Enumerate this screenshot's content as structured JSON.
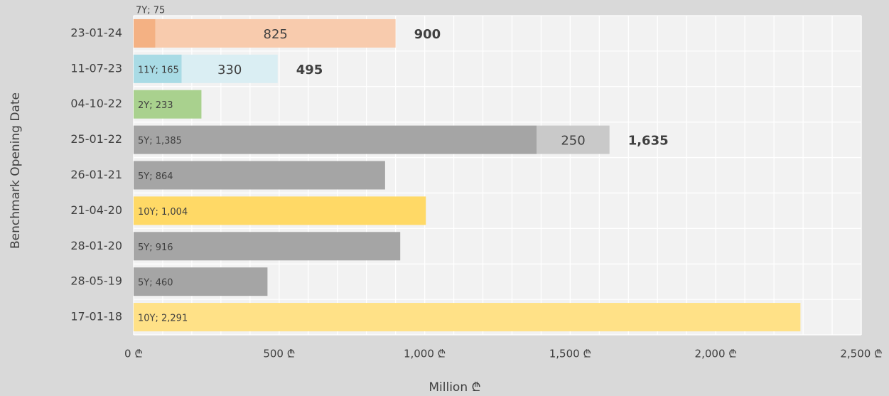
{
  "chart_data": {
    "type": "stacked-barh",
    "y_label": "Benchmark Opening Date",
    "x_label": "Million ₾",
    "categories": [
      "23-01-24",
      "11-07-23",
      "04-10-22",
      "25-01-22",
      "26-01-21",
      "21-04-20",
      "28-01-20",
      "28-05-19",
      "17-01-18"
    ],
    "series": [
      {
        "values": [
          75,
          165,
          233,
          1385,
          864,
          1004,
          916,
          460,
          2291
        ],
        "value_labels": [
          "7Y; 75",
          "11Y; 165",
          "2Y; 233",
          "5Y; 1,385",
          "5Y; 864",
          "10Y; 1,004",
          "5Y; 916",
          "5Y; 460",
          "10Y; 2,291"
        ],
        "colors": [
          "#f4b183",
          "#a9dbe5",
          "#a9d18e",
          "#a5a5a5",
          "#a5a5a5",
          "#ffd966",
          "#a5a5a5",
          "#a5a5a5",
          "#ffe187"
        ]
      },
      {
        "values": [
          825,
          330,
          null,
          250,
          null,
          null,
          null,
          null,
          null
        ],
        "colors": [
          "#f8cbad",
          "#daeef3",
          null,
          "#c9c9c9",
          null,
          null,
          null,
          null,
          null
        ]
      }
    ],
    "totals": {
      "values": [
        900,
        495,
        null,
        1635,
        null,
        null,
        null,
        null,
        null
      ],
      "value_labels": [
        "900",
        "495",
        null,
        "1,635",
        null,
        null,
        null,
        null,
        null
      ]
    },
    "xlim": [
      0,
      2500
    ],
    "xticks": [
      {
        "value": 0,
        "label": "0 ₾"
      },
      {
        "value": 500,
        "label": "500 ₾"
      },
      {
        "value": 1000,
        "label": "1,000 ₾"
      },
      {
        "value": 1500,
        "label": "1,500 ₾"
      },
      {
        "value": 2000,
        "label": "2,000 ₾"
      },
      {
        "value": 2500,
        "label": "2,500 ₾"
      }
    ],
    "xgrid": [
      0,
      100,
      200,
      300,
      400,
      500,
      600,
      700,
      800,
      900,
      1000,
      1100,
      1200,
      1300,
      1400,
      1500,
      1600,
      1700,
      1800,
      1900,
      2000,
      2100,
      2200,
      2300,
      2400,
      2500
    ],
    "grid": true
  }
}
